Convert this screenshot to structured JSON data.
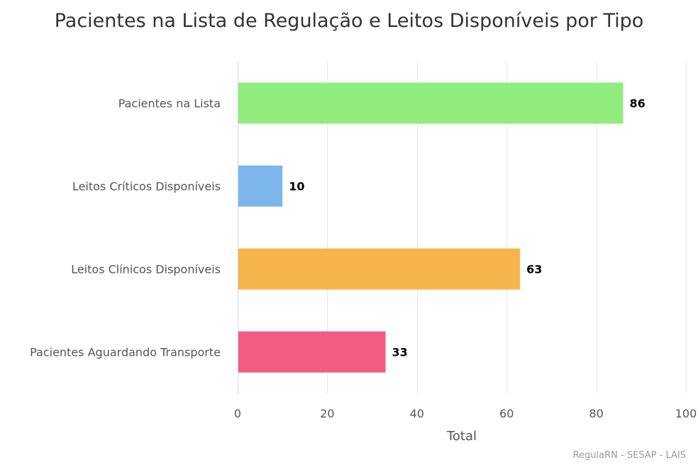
{
  "chart_data": {
    "type": "bar",
    "orientation": "horizontal",
    "title": "Pacientes na Lista de Regulação e Leitos Disponíveis por Tipo",
    "categories": [
      "Pacientes na Lista",
      "Leitos Críticos Disponíveis",
      "Leitos Clínicos Disponíveis",
      "Pacientes Aguardando Transporte"
    ],
    "values": [
      86,
      10,
      63,
      33
    ],
    "colors": [
      "#90ed7d",
      "#7cb5ec",
      "#f7b44c",
      "#f15c80"
    ],
    "xlabel": "Total",
    "xlim": [
      0,
      100
    ],
    "xticks": [
      0,
      20,
      40,
      60,
      80,
      100
    ],
    "grid": true,
    "legend": "none",
    "credits": "RegulaRN - SESAP - LAIS"
  }
}
